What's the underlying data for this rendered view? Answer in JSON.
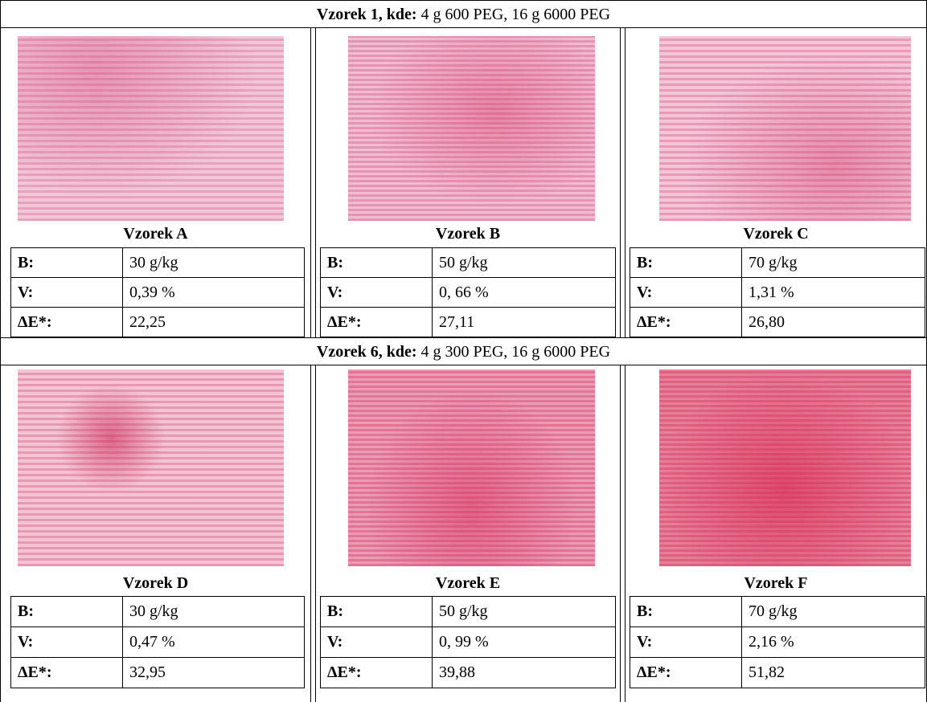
{
  "sections": [
    {
      "heading_bold": "Vzorek 1, kde:",
      "heading_text": "4 g 600 PEG, 16 g 6000 PEG",
      "samples": [
        {
          "name": "Vzorek A",
          "rows": [
            [
              "B:",
              "30 g/kg"
            ],
            [
              "V:",
              "0,39 %"
            ],
            [
              "ΔE*:",
              "22,25"
            ]
          ]
        },
        {
          "name": "Vzorek B",
          "rows": [
            [
              "B:",
              "50 g/kg"
            ],
            [
              "V:",
              "0, 66 %"
            ],
            [
              "ΔE*:",
              "27,11"
            ]
          ]
        },
        {
          "name": "Vzorek C",
          "rows": [
            [
              "B:",
              "70 g/kg"
            ],
            [
              "V:",
              "1,31 %"
            ],
            [
              "ΔE*:",
              "26,80"
            ]
          ]
        }
      ]
    },
    {
      "heading_bold": "Vzorek 6, kde:",
      "heading_text": "4 g 300 PEG, 16 g 6000 PEG",
      "samples": [
        {
          "name": "Vzorek D",
          "rows": [
            [
              "B:",
              "30 g/kg"
            ],
            [
              "V:",
              "0,47 %"
            ],
            [
              "ΔE*:",
              "32,95"
            ]
          ]
        },
        {
          "name": "Vzorek E",
          "rows": [
            [
              "B:",
              "50 g/kg"
            ],
            [
              "V:",
              "0, 99 %"
            ],
            [
              "ΔE*:",
              "39,88"
            ]
          ]
        },
        {
          "name": "Vzorek F",
          "rows": [
            [
              "B:",
              "70 g/kg"
            ],
            [
              "V:",
              "2,16 %"
            ],
            [
              "ΔE*:",
              "51,82"
            ]
          ]
        }
      ]
    }
  ]
}
